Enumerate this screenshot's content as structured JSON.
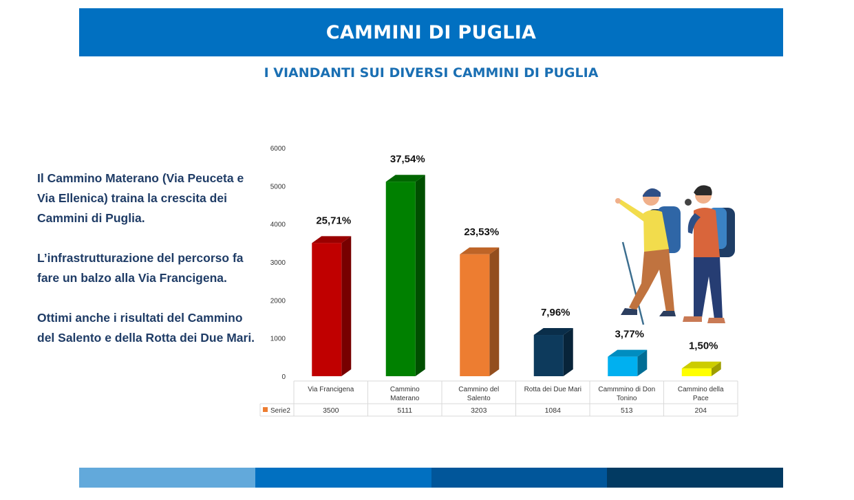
{
  "header": {
    "title": "CAMMINI DI PUGLIA"
  },
  "subtitle": "I VIANDANTI SUI DIVERSI CAMMINI DI PUGLIA",
  "left_text": {
    "paragraphs": [
      "Il Cammino Materano (Via Peuceta e Via Ellenica) traina la crescita dei Cammini di Puglia.",
      "L’infrastrutturazione del percorso fa fare un balzo alla Via Francigena.",
      "Ottimi anche i risultati del Cammino del Salento e della Rotta dei Due Mari."
    ]
  },
  "chart_data": {
    "type": "bar",
    "style": "3d-column",
    "categories": [
      [
        "Via Francigena"
      ],
      [
        "Cammino",
        "Materano"
      ],
      [
        "Cammino del",
        "Salento"
      ],
      [
        "Rotta dei Due Mari"
      ],
      [
        "Cammmino di Don",
        "Tonino"
      ],
      [
        "Cammino della",
        "Pace"
      ]
    ],
    "series": [
      {
        "name": "Serie2",
        "values": [
          3500,
          5111,
          3203,
          1084,
          513,
          204
        ]
      }
    ],
    "data_labels": [
      "25,71%",
      "37,54%",
      "23,53%",
      "7,96%",
      "3,77%",
      "1,50%"
    ],
    "bar_colors": [
      "#c00000",
      "#008000",
      "#ed7d31",
      "#0d3a5c",
      "#00b0f0",
      "#ffff00"
    ],
    "y_ticks": [
      0,
      1000,
      2000,
      3000,
      4000,
      5000,
      6000
    ],
    "ylim": [
      0,
      6000
    ],
    "grid": false,
    "data_table": true,
    "series_marker_color": "#ed7d31"
  },
  "footer": {
    "colors": [
      "#62a9db",
      "#0170c1",
      "#01569a",
      "#023a62"
    ]
  }
}
